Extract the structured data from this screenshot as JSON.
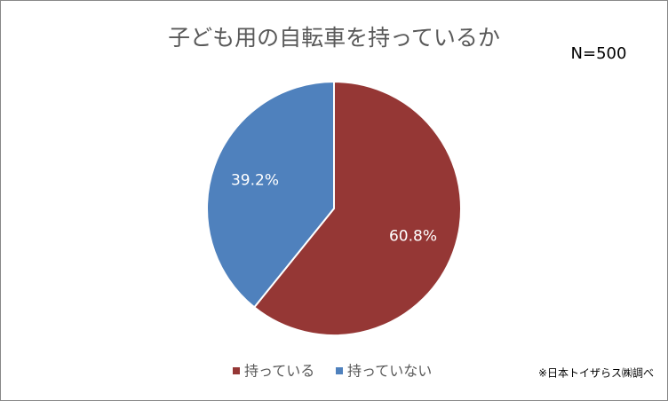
{
  "chart_data": {
    "type": "pie",
    "title": "子ども用の自転車を持っているか",
    "annotation": "N=500",
    "source": "※日本トイザらス㈱調べ",
    "categories": [
      "持っている",
      "持っていない"
    ],
    "values": [
      60.8,
      39.2
    ],
    "value_labels": [
      "60.8%",
      "39.2%"
    ],
    "colors": [
      "#953735",
      "#4f81bd"
    ],
    "legend": "bottom"
  }
}
